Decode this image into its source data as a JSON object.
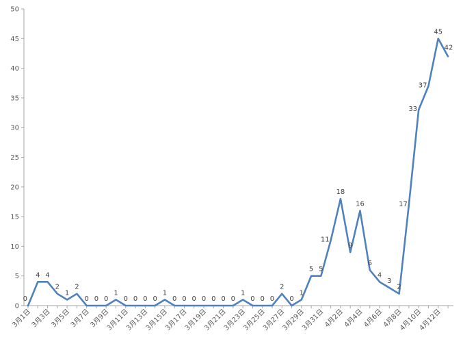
{
  "chart_data": {
    "type": "line",
    "title": "",
    "xlabel": "",
    "ylabel": "",
    "ylim": [
      0,
      50
    ],
    "yticks": [
      0,
      5,
      10,
      15,
      20,
      25,
      30,
      35,
      40,
      45,
      50
    ],
    "grid": false,
    "legend": "none",
    "categories": [
      "3月1日",
      "3月2日",
      "3月3日",
      "3月4日",
      "3月5日",
      "3月6日",
      "3月7日",
      "3月8日",
      "3月9日",
      "3月10日",
      "3月11日",
      "3月12日",
      "3月13日",
      "3月14日",
      "3月15日",
      "3月16日",
      "3月17日",
      "3月18日",
      "3月19日",
      "3月20日",
      "3月21日",
      "3月22日",
      "3月23日",
      "3月24日",
      "3月25日",
      "3月26日",
      "3月27日",
      "3月28日",
      "3月29日",
      "3月30日",
      "3月31日",
      "4月1日",
      "4月2日",
      "4月3日",
      "4月4日",
      "4月5日",
      "4月6日",
      "4月7日",
      "4月8日",
      "4月9日",
      "4月10日",
      "4月11日",
      "4月12日",
      "4月13日"
    ],
    "tick_labels": [
      "3月1日",
      "",
      "3月3日",
      "",
      "3月5日",
      "",
      "3月7日",
      "",
      "3月9日",
      "",
      "3月11日",
      "",
      "3月13日",
      "",
      "3月15日",
      "",
      "3月17日",
      "",
      "3月19日",
      "",
      "3月21日",
      "",
      "3月23日",
      "",
      "3月25日",
      "",
      "3月27日",
      "",
      "3月29日",
      "",
      "3月31日",
      "",
      "4月2日",
      "",
      "4月4日",
      "",
      "4月6日",
      "",
      "4月8日",
      "",
      "4月10日",
      "",
      "4月12日",
      ""
    ],
    "series": [
      {
        "values": [
          0,
          4,
          4,
          2,
          1,
          2,
          0,
          0,
          0,
          1,
          0,
          0,
          0,
          0,
          1,
          0,
          0,
          0,
          0,
          0,
          0,
          0,
          1,
          0,
          0,
          0,
          2,
          0,
          1,
          5,
          5,
          11,
          18,
          9,
          16,
          6,
          4,
          3,
          2,
          17,
          33,
          37,
          45,
          42
        ],
        "labels": [
          "0",
          "4",
          "4",
          "2",
          "1",
          "2",
          "0",
          "0",
          "0",
          "1",
          "0",
          "0",
          "0",
          "0",
          "1",
          "0",
          "0",
          "0",
          "0",
          "0",
          "0",
          "0",
          "1",
          "0",
          "0",
          "0",
          "2",
          "0",
          "1",
          "5",
          "5",
          "11",
          "18",
          "9",
          "16",
          "6",
          "4",
          "3",
          "2",
          "17",
          "33",
          "37",
          "45",
          "42"
        ],
        "color": "#4f81bd"
      }
    ]
  },
  "colors": {
    "line": "#4f81bd",
    "axis": "#a6a6a6",
    "text": "#595959"
  }
}
